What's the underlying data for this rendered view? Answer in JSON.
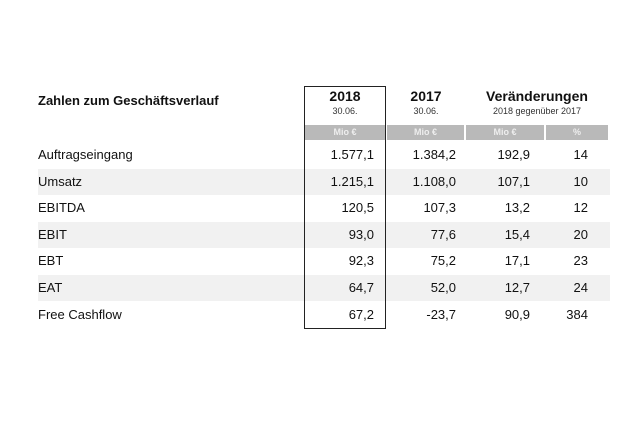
{
  "title": "Zahlen zum Geschäftsverlauf",
  "columns": [
    {
      "year": "2018",
      "sub": "30.06.",
      "unit": "Mio €"
    },
    {
      "year": "2017",
      "sub": "30.06.",
      "unit": "Mio €"
    },
    {
      "year": "Veränderungen",
      "sub": "2018 gegenüber 2017",
      "unit": "Mio €",
      "unit2": "%"
    }
  ],
  "rows": [
    {
      "label": "Auftragseingang",
      "v2018": "1.577,1",
      "v2017": "1.384,2",
      "diff": "192,9",
      "pct": "14"
    },
    {
      "label": "Umsatz",
      "v2018": "1.215,1",
      "v2017": "1.108,0",
      "diff": "107,1",
      "pct": "10"
    },
    {
      "label": "EBITDA",
      "v2018": "120,5",
      "v2017": "107,3",
      "diff": "13,2",
      "pct": "12"
    },
    {
      "label": "EBIT",
      "v2018": "93,0",
      "v2017": "77,6",
      "diff": "15,4",
      "pct": "20"
    },
    {
      "label": "EBT",
      "v2018": "92,3",
      "v2017": "75,2",
      "diff": "17,1",
      "pct": "23"
    },
    {
      "label": "EAT",
      "v2018": "64,7",
      "v2017": "52,0",
      "diff": "12,7",
      "pct": "24"
    },
    {
      "label": "Free Cashflow",
      "v2018": "67,2",
      "v2017": "-23,7",
      "diff": "90,9",
      "pct": "384"
    }
  ]
}
